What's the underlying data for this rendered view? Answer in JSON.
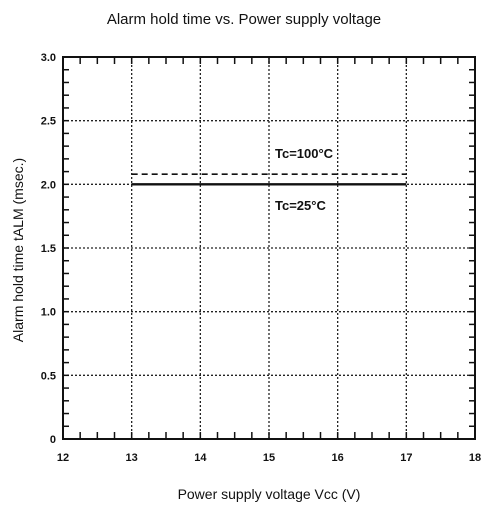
{
  "chart_data": {
    "type": "line",
    "title": "Alarm hold time vs. Power supply voltage",
    "xlabel": "Power supply voltage  Vcc (V)",
    "ylabel": "Alarm hold time  tALM (msec.)",
    "xlim": [
      12,
      18
    ],
    "ylim": [
      0,
      3.0
    ],
    "xticks": [
      "12",
      "13",
      "14",
      "15",
      "16",
      "17",
      "18"
    ],
    "yticks": [
      "0",
      "0.5",
      "1.0",
      "1.5",
      "2.0",
      "2.5",
      "3.0"
    ],
    "grid": true,
    "series": [
      {
        "name": "Tc=100°C",
        "style": "dashed",
        "x": [
          13,
          17
        ],
        "y": [
          2.08,
          2.08
        ]
      },
      {
        "name": "Tc=25°C",
        "style": "solid",
        "x": [
          13,
          17
        ],
        "y": [
          2.0,
          2.0
        ]
      }
    ],
    "annotations": [
      "Tc=100°C",
      "Tc=25°C"
    ]
  }
}
